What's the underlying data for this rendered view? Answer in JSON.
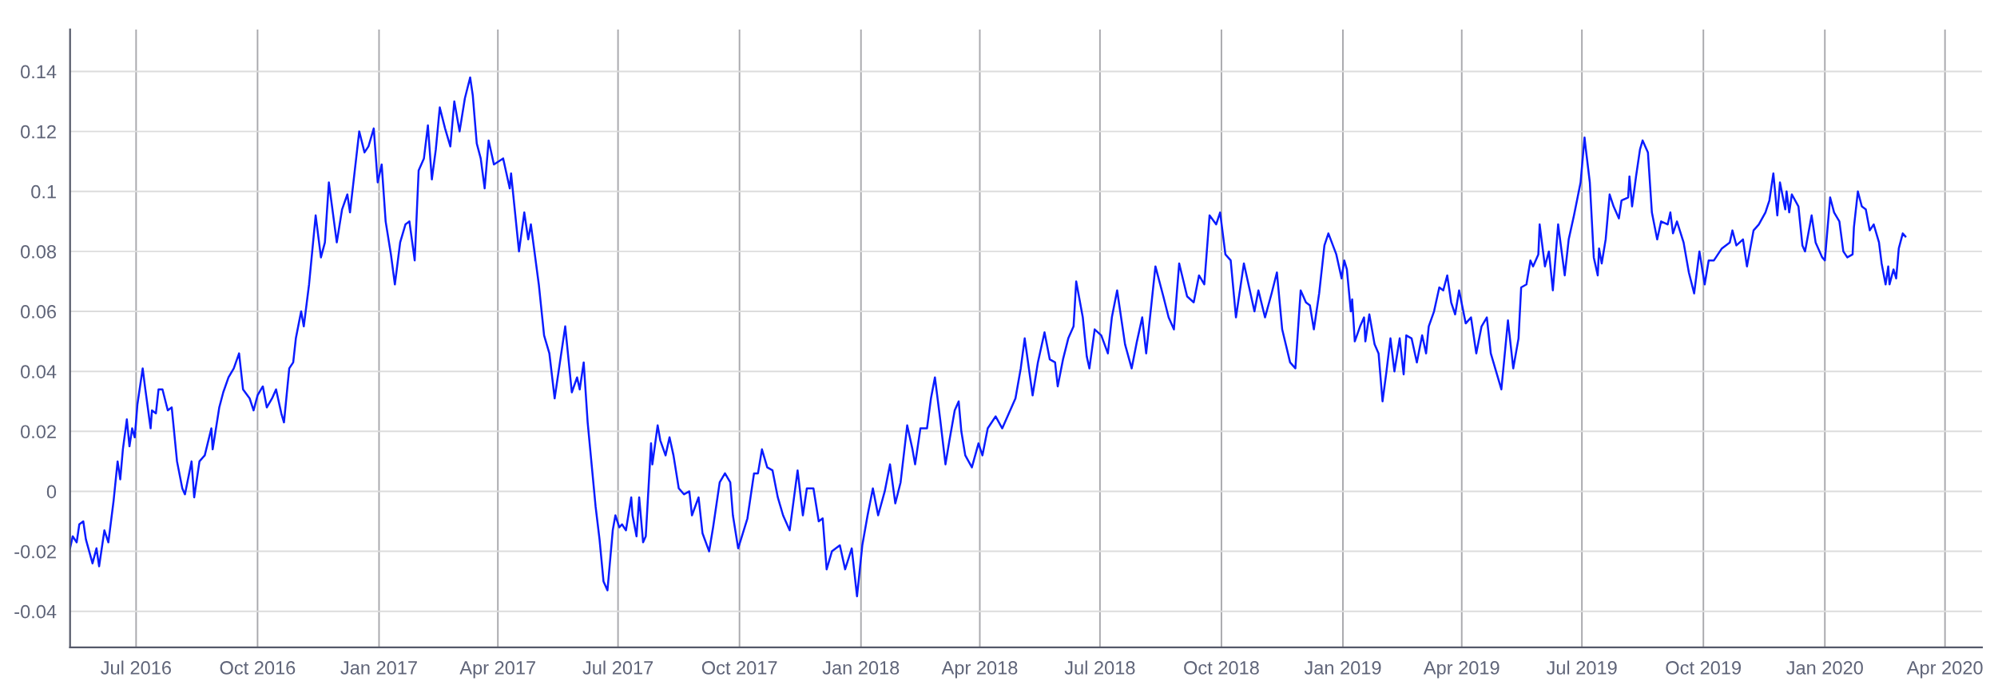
{
  "chart_data": {
    "type": "line",
    "x": [
      "2016-05-12",
      "2016-05-14",
      "2016-05-17",
      "2016-05-19",
      "2016-05-22",
      "2016-05-24",
      "2016-05-29",
      "2016-06-01",
      "2016-06-03",
      "2016-06-07",
      "2016-06-10",
      "2016-06-14",
      "2016-06-17",
      "2016-06-19",
      "2016-06-21",
      "2016-06-24",
      "2016-06-26",
      "2016-06-28",
      "2016-06-30",
      "2016-07-02",
      "2016-07-06",
      "2016-07-08",
      "2016-07-12",
      "2016-07-13",
      "2016-07-16",
      "2016-07-18",
      "2016-07-21",
      "2016-07-25",
      "2016-07-28",
      "2016-08-01",
      "2016-08-05",
      "2016-08-07",
      "2016-08-12",
      "2016-08-14",
      "2016-08-18",
      "2016-08-22",
      "2016-08-27",
      "2016-08-28",
      "2016-09-02",
      "2016-09-05",
      "2016-09-09",
      "2016-09-13",
      "2016-09-17",
      "2016-09-20",
      "2016-09-25",
      "2016-09-28",
      "2016-10-01",
      "2016-10-05",
      "2016-10-08",
      "2016-10-12",
      "2016-10-15",
      "2016-10-19",
      "2016-10-21",
      "2016-10-25",
      "2016-10-28",
      "2016-10-30",
      "2016-11-03",
      "2016-11-05",
      "2016-11-09",
      "2016-11-14",
      "2016-11-18",
      "2016-11-21",
      "2016-11-24",
      "2016-11-30",
      "2016-12-04",
      "2016-12-08",
      "2016-12-10",
      "2016-12-17",
      "2016-12-21",
      "2016-12-24",
      "2016-12-28",
      "2016-12-31",
      "2017-01-03",
      "2017-01-06",
      "2017-01-10",
      "2017-01-13",
      "2017-01-17",
      "2017-01-21",
      "2017-01-24",
      "2017-01-28",
      "2017-01-31",
      "2017-02-04",
      "2017-02-07",
      "2017-02-10",
      "2017-02-13",
      "2017-02-16",
      "2017-02-20",
      "2017-02-24",
      "2017-02-27",
      "2017-03-03",
      "2017-03-07",
      "2017-03-11",
      "2017-03-13",
      "2017-03-16",
      "2017-03-19",
      "2017-03-22",
      "2017-03-25",
      "2017-03-29",
      "2017-04-05",
      "2017-04-10",
      "2017-04-11",
      "2017-04-17",
      "2017-04-21",
      "2017-04-24",
      "2017-04-26",
      "2017-05-02",
      "2017-05-06",
      "2017-05-10",
      "2017-05-14",
      "2017-05-18",
      "2017-05-22",
      "2017-05-27",
      "2017-05-31",
      "2017-06-02",
      "2017-06-05",
      "2017-06-08",
      "2017-06-14",
      "2017-06-17",
      "2017-06-20",
      "2017-06-23",
      "2017-06-27",
      "2017-06-29",
      "2017-07-02",
      "2017-07-04",
      "2017-07-07",
      "2017-07-11",
      "2017-07-12",
      "2017-07-15",
      "2017-07-17",
      "2017-07-20",
      "2017-07-22",
      "2017-07-26",
      "2017-07-27",
      "2017-07-31",
      "2017-08-02",
      "2017-08-06",
      "2017-08-09",
      "2017-08-12",
      "2017-08-16",
      "2017-08-20",
      "2017-08-24",
      "2017-08-26",
      "2017-08-31",
      "2017-09-03",
      "2017-09-08",
      "2017-09-11",
      "2017-09-16",
      "2017-09-20",
      "2017-09-24",
      "2017-09-26",
      "2017-09-30",
      "2017-10-07",
      "2017-10-12",
      "2017-10-15",
      "2017-10-18",
      "2017-10-22",
      "2017-10-26",
      "2017-10-30",
      "2017-11-03",
      "2017-11-08",
      "2017-11-14",
      "2017-11-18",
      "2017-11-21",
      "2017-11-26",
      "2017-11-30",
      "2017-12-03",
      "2017-12-06",
      "2017-12-10",
      "2017-12-16",
      "2017-12-20",
      "2017-12-25",
      "2017-12-29",
      "2018-01-02",
      "2018-01-06",
      "2018-01-10",
      "2018-01-14",
      "2018-01-19",
      "2018-01-23",
      "2018-01-27",
      "2018-01-31",
      "2018-02-05",
      "2018-02-09",
      "2018-02-11",
      "2018-02-15",
      "2018-02-20",
      "2018-02-23",
      "2018-02-26",
      "2018-03-02",
      "2018-03-06",
      "2018-03-09",
      "2018-03-13",
      "2018-03-16",
      "2018-03-18",
      "2018-03-21",
      "2018-03-26",
      "2018-03-31",
      "2018-04-03",
      "2018-04-07",
      "2018-04-13",
      "2018-04-18",
      "2018-04-23",
      "2018-04-28",
      "2018-05-02",
      "2018-05-05",
      "2018-05-11",
      "2018-05-15",
      "2018-05-20",
      "2018-05-24",
      "2018-05-28",
      "2018-05-30",
      "2018-06-03",
      "2018-06-07",
      "2018-06-11",
      "2018-06-13",
      "2018-06-18",
      "2018-06-21",
      "2018-06-23",
      "2018-06-27",
      "2018-07-02",
      "2018-07-07",
      "2018-07-10",
      "2018-07-14",
      "2018-07-20",
      "2018-07-25",
      "2018-07-29",
      "2018-08-02",
      "2018-08-05",
      "2018-08-12",
      "2018-08-18",
      "2018-08-22",
      "2018-08-26",
      "2018-08-30",
      "2018-09-05",
      "2018-09-10",
      "2018-09-14",
      "2018-09-18",
      "2018-09-22",
      "2018-09-27",
      "2018-09-30",
      "2018-10-04",
      "2018-10-08",
      "2018-10-12",
      "2018-10-18",
      "2018-10-23",
      "2018-10-26",
      "2018-10-29",
      "2018-11-03",
      "2018-11-08",
      "2018-11-12",
      "2018-11-16",
      "2018-11-22",
      "2018-11-26",
      "2018-11-30",
      "2018-12-04",
      "2018-12-07",
      "2018-12-10",
      "2018-12-14",
      "2018-12-18",
      "2018-12-21",
      "2018-12-27",
      "2018-12-31",
      "2019-01-02",
      "2019-01-04",
      "2019-01-07",
      "2019-01-08",
      "2019-01-10",
      "2019-01-14",
      "2019-01-17",
      "2019-01-18",
      "2019-01-21",
      "2019-01-25",
      "2019-01-28",
      "2019-01-31",
      "2019-02-03",
      "2019-02-06",
      "2019-02-09",
      "2019-02-13",
      "2019-02-16",
      "2019-02-18",
      "2019-02-22",
      "2019-02-26",
      "2019-03-02",
      "2019-03-05",
      "2019-03-07",
      "2019-03-11",
      "2019-03-15",
      "2019-03-18",
      "2019-03-21",
      "2019-03-24",
      "2019-03-27",
      "2019-03-30",
      "2019-04-04",
      "2019-04-08",
      "2019-04-12",
      "2019-04-16",
      "2019-04-20",
      "2019-04-23",
      "2019-04-27",
      "2019-05-01",
      "2019-05-06",
      "2019-05-10",
      "2019-05-14",
      "2019-05-16",
      "2019-05-20",
      "2019-05-23",
      "2019-05-25",
      "2019-05-29",
      "2019-05-30",
      "2019-06-03",
      "2019-06-06",
      "2019-06-09",
      "2019-06-13",
      "2019-06-18",
      "2019-06-21",
      "2019-06-25",
      "2019-06-30",
      "2019-07-03",
      "2019-07-04",
      "2019-07-07",
      "2019-07-10",
      "2019-07-13",
      "2019-07-14",
      "2019-07-16",
      "2019-07-19",
      "2019-07-22",
      "2019-07-25",
      "2019-07-29",
      "2019-07-31",
      "2019-08-05",
      "2019-08-06",
      "2019-08-08",
      "2019-08-11",
      "2019-08-14",
      "2019-08-16",
      "2019-08-20",
      "2019-08-23",
      "2019-08-27",
      "2019-08-30",
      "2019-09-04",
      "2019-09-06",
      "2019-09-08",
      "2019-09-11",
      "2019-09-16",
      "2019-09-20",
      "2019-09-24",
      "2019-09-28",
      "2019-10-02",
      "2019-10-05",
      "2019-10-09",
      "2019-10-15",
      "2019-10-21",
      "2019-10-23",
      "2019-10-26",
      "2019-10-31",
      "2019-11-03",
      "2019-11-08",
      "2019-11-12",
      "2019-11-17",
      "2019-11-20",
      "2019-11-23",
      "2019-11-26",
      "2019-11-28",
      "2019-12-02",
      "2019-12-03",
      "2019-12-05",
      "2019-12-07",
      "2019-12-12",
      "2019-12-15",
      "2019-12-17",
      "2019-12-22",
      "2019-12-25",
      "2019-12-30",
      "2020-01-01",
      "2020-01-05",
      "2020-01-08",
      "2020-01-12",
      "2020-01-15",
      "2020-01-18",
      "2020-01-22",
      "2020-01-23",
      "2020-01-26",
      "2020-01-29",
      "2020-02-01",
      "2020-02-04",
      "2020-02-07",
      "2020-02-11",
      "2020-02-13",
      "2020-02-16",
      "2020-02-18",
      "2020-02-19",
      "2020-02-22",
      "2020-02-24",
      "2020-02-26",
      "2020-02-29",
      "2020-03-02"
    ],
    "series": [
      {
        "color": "#0a1cff",
        "values": [
          -0.019,
          -0.015,
          -0.017,
          -0.011,
          -0.01,
          -0.016,
          -0.024,
          -0.019,
          -0.025,
          -0.013,
          -0.017,
          -0.003,
          0.01,
          0.004,
          0.014,
          0.024,
          0.015,
          0.021,
          0.018,
          0.029,
          0.041,
          0.034,
          0.021,
          0.027,
          0.026,
          0.034,
          0.034,
          0.027,
          0.028,
          0.01,
          0.001,
          -0.001,
          0.01,
          -0.002,
          0.01,
          0.012,
          0.021,
          0.014,
          0.028,
          0.033,
          0.038,
          0.041,
          0.046,
          0.034,
          0.031,
          0.027,
          0.032,
          0.035,
          0.028,
          0.031,
          0.034,
          0.026,
          0.023,
          0.041,
          0.043,
          0.051,
          0.06,
          0.055,
          0.069,
          0.092,
          0.078,
          0.083,
          0.103,
          0.083,
          0.094,
          0.099,
          0.093,
          0.12,
          0.113,
          0.115,
          0.121,
          0.103,
          0.109,
          0.09,
          0.079,
          0.069,
          0.083,
          0.089,
          0.09,
          0.077,
          0.107,
          0.111,
          0.122,
          0.104,
          0.114,
          0.128,
          0.121,
          0.115,
          0.13,
          0.12,
          0.131,
          0.138,
          0.132,
          0.116,
          0.111,
          0.101,
          0.117,
          0.109,
          0.111,
          0.101,
          0.106,
          0.08,
          0.093,
          0.084,
          0.089,
          0.069,
          0.052,
          0.046,
          0.031,
          0.043,
          0.055,
          0.033,
          0.038,
          0.034,
          0.043,
          0.023,
          -0.005,
          -0.016,
          -0.03,
          -0.033,
          -0.013,
          -0.008,
          -0.012,
          -0.011,
          -0.013,
          -0.002,
          -0.008,
          -0.015,
          -0.002,
          -0.017,
          -0.015,
          0.016,
          0.009,
          0.022,
          0.017,
          0.012,
          0.018,
          0.012,
          0.001,
          -0.001,
          0.0,
          -0.008,
          -0.002,
          -0.014,
          -0.02,
          -0.012,
          0.003,
          0.006,
          0.003,
          -0.008,
          -0.019,
          -0.009,
          0.006,
          0.006,
          0.014,
          0.008,
          0.007,
          -0.002,
          -0.008,
          -0.013,
          0.007,
          -0.008,
          0.001,
          0.001,
          -0.01,
          -0.009,
          -0.026,
          -0.02,
          -0.018,
          -0.026,
          -0.019,
          -0.035,
          -0.018,
          -0.008,
          0.001,
          -0.008,
          0.0,
          0.009,
          -0.004,
          0.003,
          0.022,
          0.014,
          0.009,
          0.021,
          0.021,
          0.031,
          0.038,
          0.024,
          0.009,
          0.017,
          0.027,
          0.03,
          0.02,
          0.012,
          0.008,
          0.016,
          0.012,
          0.021,
          0.025,
          0.021,
          0.026,
          0.031,
          0.041,
          0.051,
          0.032,
          0.043,
          0.053,
          0.044,
          0.043,
          0.035,
          0.044,
          0.051,
          0.055,
          0.07,
          0.058,
          0.045,
          0.041,
          0.054,
          0.052,
          0.046,
          0.058,
          0.067,
          0.049,
          0.041,
          0.05,
          0.058,
          0.046,
          0.075,
          0.065,
          0.058,
          0.054,
          0.076,
          0.065,
          0.063,
          0.072,
          0.069,
          0.092,
          0.089,
          0.093,
          0.079,
          0.077,
          0.058,
          0.076,
          0.066,
          0.06,
          0.067,
          0.058,
          0.066,
          0.073,
          0.054,
          0.043,
          0.041,
          0.067,
          0.063,
          0.062,
          0.054,
          0.066,
          0.082,
          0.086,
          0.079,
          0.071,
          0.077,
          0.074,
          0.06,
          0.064,
          0.05,
          0.055,
          0.058,
          0.05,
          0.059,
          0.049,
          0.046,
          0.03,
          0.04,
          0.051,
          0.04,
          0.051,
          0.039,
          0.052,
          0.051,
          0.043,
          0.052,
          0.046,
          0.055,
          0.06,
          0.068,
          0.067,
          0.072,
          0.063,
          0.059,
          0.067,
          0.056,
          0.058,
          0.046,
          0.055,
          0.058,
          0.046,
          0.04,
          0.034,
          0.057,
          0.041,
          0.051,
          0.068,
          0.069,
          0.077,
          0.075,
          0.079,
          0.089,
          0.075,
          0.08,
          0.067,
          0.089,
          0.072,
          0.084,
          0.092,
          0.103,
          0.118,
          0.114,
          0.103,
          0.078,
          0.072,
          0.081,
          0.076,
          0.084,
          0.099,
          0.095,
          0.091,
          0.097,
          0.098,
          0.105,
          0.095,
          0.105,
          0.114,
          0.117,
          0.113,
          0.093,
          0.084,
          0.09,
          0.089,
          0.093,
          0.086,
          0.09,
          0.083,
          0.073,
          0.066,
          0.08,
          0.069,
          0.077,
          0.077,
          0.081,
          0.083,
          0.087,
          0.082,
          0.084,
          0.075,
          0.087,
          0.089,
          0.093,
          0.097,
          0.106,
          0.092,
          0.103,
          0.094,
          0.1,
          0.093,
          0.099,
          0.095,
          0.082,
          0.08,
          0.092,
          0.083,
          0.078,
          0.077,
          0.098,
          0.093,
          0.09,
          0.08,
          0.078,
          0.079,
          0.088,
          0.1,
          0.095,
          0.094,
          0.087,
          0.089,
          0.083,
          0.076,
          0.069,
          0.075,
          0.069,
          0.074,
          0.071,
          0.081,
          0.086,
          0.085
        ]
      }
    ],
    "xlim": [
      "2016-05-12",
      "2020-04-29"
    ],
    "xticks": [
      {
        "value": "2016-07-01",
        "label": "Jul 2016"
      },
      {
        "value": "2016-10-01",
        "label": "Oct 2016"
      },
      {
        "value": "2017-01-01",
        "label": "Jan 2017"
      },
      {
        "value": "2017-04-01",
        "label": "Apr 2017"
      },
      {
        "value": "2017-07-01",
        "label": "Jul 2017"
      },
      {
        "value": "2017-10-01",
        "label": "Oct 2017"
      },
      {
        "value": "2018-01-01",
        "label": "Jan 2018"
      },
      {
        "value": "2018-04-01",
        "label": "Apr 2018"
      },
      {
        "value": "2018-07-01",
        "label": "Jul 2018"
      },
      {
        "value": "2018-10-01",
        "label": "Oct 2018"
      },
      {
        "value": "2019-01-01",
        "label": "Jan 2019"
      },
      {
        "value": "2019-04-01",
        "label": "Apr 2019"
      },
      {
        "value": "2019-07-01",
        "label": "Jul 2019"
      },
      {
        "value": "2019-10-01",
        "label": "Oct 2019"
      },
      {
        "value": "2020-01-01",
        "label": "Jan 2020"
      },
      {
        "value": "2020-04-01",
        "label": "Apr 2020"
      }
    ],
    "ylim": [
      -0.052,
      0.154
    ],
    "yticks": [
      -0.04,
      -0.02,
      0,
      0.02,
      0.04,
      0.06,
      0.08,
      0.1,
      0.12,
      0.14
    ],
    "grid": true,
    "line_style": "solid",
    "marker": "none"
  }
}
